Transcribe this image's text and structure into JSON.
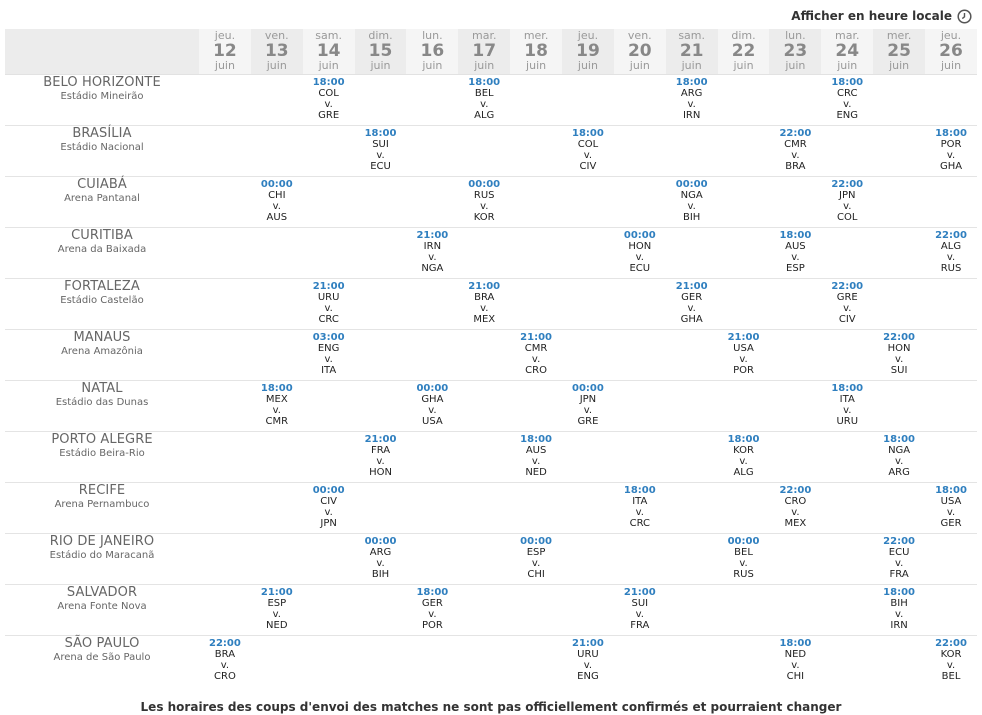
{
  "toolbar": {
    "local_time_label": "Afficher en heure locale",
    "icon": "clock-icon"
  },
  "days": [
    {
      "dow": "jeu.",
      "day": "12",
      "month": "juin"
    },
    {
      "dow": "ven.",
      "day": "13",
      "month": "juin"
    },
    {
      "dow": "sam.",
      "day": "14",
      "month": "juin"
    },
    {
      "dow": "dim.",
      "day": "15",
      "month": "juin"
    },
    {
      "dow": "lun.",
      "day": "16",
      "month": "juin"
    },
    {
      "dow": "mar.",
      "day": "17",
      "month": "juin"
    },
    {
      "dow": "mer.",
      "day": "18",
      "month": "juin"
    },
    {
      "dow": "jeu.",
      "day": "19",
      "month": "juin"
    },
    {
      "dow": "ven.",
      "day": "20",
      "month": "juin"
    },
    {
      "dow": "sam.",
      "day": "21",
      "month": "juin"
    },
    {
      "dow": "dim.",
      "day": "22",
      "month": "juin"
    },
    {
      "dow": "lun.",
      "day": "23",
      "month": "juin"
    },
    {
      "dow": "mar.",
      "day": "24",
      "month": "juin"
    },
    {
      "dow": "mer.",
      "day": "25",
      "month": "juin"
    },
    {
      "dow": "jeu.",
      "day": "26",
      "month": "juin"
    }
  ],
  "venues": [
    {
      "city": "BELO HORIZONTE",
      "stadium": "Estádio Mineirão",
      "matches": [
        {
          "day_index": 2,
          "time": "18:00",
          "home": "COL",
          "vs": "v.",
          "away": "GRE"
        },
        {
          "day_index": 5,
          "time": "18:00",
          "home": "BEL",
          "vs": "v.",
          "away": "ALG"
        },
        {
          "day_index": 9,
          "time": "18:00",
          "home": "ARG",
          "vs": "v.",
          "away": "IRN"
        },
        {
          "day_index": 12,
          "time": "18:00",
          "home": "CRC",
          "vs": "v.",
          "away": "ENG"
        }
      ]
    },
    {
      "city": "BRASÍLIA",
      "stadium": "Estádio Nacional",
      "matches": [
        {
          "day_index": 3,
          "time": "18:00",
          "home": "SUI",
          "vs": "v.",
          "away": "ECU"
        },
        {
          "day_index": 7,
          "time": "18:00",
          "home": "COL",
          "vs": "v.",
          "away": "CIV"
        },
        {
          "day_index": 11,
          "time": "22:00",
          "home": "CMR",
          "vs": "v.",
          "away": "BRA"
        },
        {
          "day_index": 14,
          "time": "18:00",
          "home": "POR",
          "vs": "v.",
          "away": "GHA"
        }
      ]
    },
    {
      "city": "CUIABÁ",
      "stadium": "Arena Pantanal",
      "matches": [
        {
          "day_index": 1,
          "time": "00:00",
          "home": "CHI",
          "vs": "v.",
          "away": "AUS"
        },
        {
          "day_index": 5,
          "time": "00:00",
          "home": "RUS",
          "vs": "v.",
          "away": "KOR"
        },
        {
          "day_index": 9,
          "time": "00:00",
          "home": "NGA",
          "vs": "v.",
          "away": "BIH"
        },
        {
          "day_index": 12,
          "time": "22:00",
          "home": "JPN",
          "vs": "v.",
          "away": "COL"
        }
      ]
    },
    {
      "city": "CURITIBA",
      "stadium": "Arena da Baixada",
      "matches": [
        {
          "day_index": 4,
          "time": "21:00",
          "home": "IRN",
          "vs": "v.",
          "away": "NGA"
        },
        {
          "day_index": 8,
          "time": "00:00",
          "home": "HON",
          "vs": "v.",
          "away": "ECU"
        },
        {
          "day_index": 11,
          "time": "18:00",
          "home": "AUS",
          "vs": "v.",
          "away": "ESP"
        },
        {
          "day_index": 14,
          "time": "22:00",
          "home": "ALG",
          "vs": "v.",
          "away": "RUS"
        }
      ]
    },
    {
      "city": "FORTALEZA",
      "stadium": "Estádio Castelão",
      "matches": [
        {
          "day_index": 2,
          "time": "21:00",
          "home": "URU",
          "vs": "v.",
          "away": "CRC"
        },
        {
          "day_index": 5,
          "time": "21:00",
          "home": "BRA",
          "vs": "v.",
          "away": "MEX"
        },
        {
          "day_index": 9,
          "time": "21:00",
          "home": "GER",
          "vs": "v.",
          "away": "GHA"
        },
        {
          "day_index": 12,
          "time": "22:00",
          "home": "GRE",
          "vs": "v.",
          "away": "CIV"
        }
      ]
    },
    {
      "city": "MANAUS",
      "stadium": "Arena Amazônia",
      "matches": [
        {
          "day_index": 2,
          "time": "03:00",
          "home": "ENG",
          "vs": "v.",
          "away": "ITA"
        },
        {
          "day_index": 6,
          "time": "21:00",
          "home": "CMR",
          "vs": "v.",
          "away": "CRO"
        },
        {
          "day_index": 10,
          "time": "21:00",
          "home": "USA",
          "vs": "v.",
          "away": "POR"
        },
        {
          "day_index": 13,
          "time": "22:00",
          "home": "HON",
          "vs": "v.",
          "away": "SUI"
        }
      ]
    },
    {
      "city": "NATAL",
      "stadium": "Estádio das Dunas",
      "matches": [
        {
          "day_index": 1,
          "time": "18:00",
          "home": "MEX",
          "vs": "v.",
          "away": "CMR"
        },
        {
          "day_index": 4,
          "time": "00:00",
          "home": "GHA",
          "vs": "v.",
          "away": "USA"
        },
        {
          "day_index": 7,
          "time": "00:00",
          "home": "JPN",
          "vs": "v.",
          "away": "GRE"
        },
        {
          "day_index": 12,
          "time": "18:00",
          "home": "ITA",
          "vs": "v.",
          "away": "URU"
        }
      ]
    },
    {
      "city": "PORTO ALEGRE",
      "stadium": "Estádio Beira-Rio",
      "matches": [
        {
          "day_index": 3,
          "time": "21:00",
          "home": "FRA",
          "vs": "v.",
          "away": "HON"
        },
        {
          "day_index": 6,
          "time": "18:00",
          "home": "AUS",
          "vs": "v.",
          "away": "NED"
        },
        {
          "day_index": 10,
          "time": "18:00",
          "home": "KOR",
          "vs": "v.",
          "away": "ALG"
        },
        {
          "day_index": 13,
          "time": "18:00",
          "home": "NGA",
          "vs": "v.",
          "away": "ARG"
        }
      ]
    },
    {
      "city": "RECIFE",
      "stadium": "Arena Pernambuco",
      "matches": [
        {
          "day_index": 2,
          "time": "00:00",
          "home": "CIV",
          "vs": "v.",
          "away": "JPN"
        },
        {
          "day_index": 8,
          "time": "18:00",
          "home": "ITA",
          "vs": "v.",
          "away": "CRC"
        },
        {
          "day_index": 11,
          "time": "22:00",
          "home": "CRO",
          "vs": "v.",
          "away": "MEX"
        },
        {
          "day_index": 14,
          "time": "18:00",
          "home": "USA",
          "vs": "v.",
          "away": "GER"
        }
      ]
    },
    {
      "city": "RIO DE JANEIRO",
      "stadium": "Estádio do Maracanã",
      "matches": [
        {
          "day_index": 3,
          "time": "00:00",
          "home": "ARG",
          "vs": "v.",
          "away": "BIH"
        },
        {
          "day_index": 6,
          "time": "00:00",
          "home": "ESP",
          "vs": "v.",
          "away": "CHI"
        },
        {
          "day_index": 10,
          "time": "00:00",
          "home": "BEL",
          "vs": "v.",
          "away": "RUS"
        },
        {
          "day_index": 13,
          "time": "22:00",
          "home": "ECU",
          "vs": "v.",
          "away": "FRA"
        }
      ]
    },
    {
      "city": "SALVADOR",
      "stadium": "Arena Fonte Nova",
      "matches": [
        {
          "day_index": 1,
          "time": "21:00",
          "home": "ESP",
          "vs": "v.",
          "away": "NED"
        },
        {
          "day_index": 4,
          "time": "18:00",
          "home": "GER",
          "vs": "v.",
          "away": "POR"
        },
        {
          "day_index": 8,
          "time": "21:00",
          "home": "SUI",
          "vs": "v.",
          "away": "FRA"
        },
        {
          "day_index": 13,
          "time": "18:00",
          "home": "BIH",
          "vs": "v.",
          "away": "IRN"
        }
      ]
    },
    {
      "city": "SÃO PAULO",
      "stadium": "Arena de São Paulo",
      "matches": [
        {
          "day_index": 0,
          "time": "22:00",
          "home": "BRA",
          "vs": "v.",
          "away": "CRO"
        },
        {
          "day_index": 7,
          "time": "21:00",
          "home": "URU",
          "vs": "v.",
          "away": "ENG"
        },
        {
          "day_index": 11,
          "time": "18:00",
          "home": "NED",
          "vs": "v.",
          "away": "CHI"
        },
        {
          "day_index": 14,
          "time": "22:00",
          "home": "KOR",
          "vs": "v.",
          "away": "BEL"
        }
      ]
    }
  ],
  "footer": {
    "note": "Les horaires des coups d'envoi des matches ne sont pas officiellement confirmés et pourraient changer"
  },
  "colors": {
    "time": "#2f7fbf",
    "header_bg": "#ececec",
    "row_border": "#e4e4e4"
  }
}
